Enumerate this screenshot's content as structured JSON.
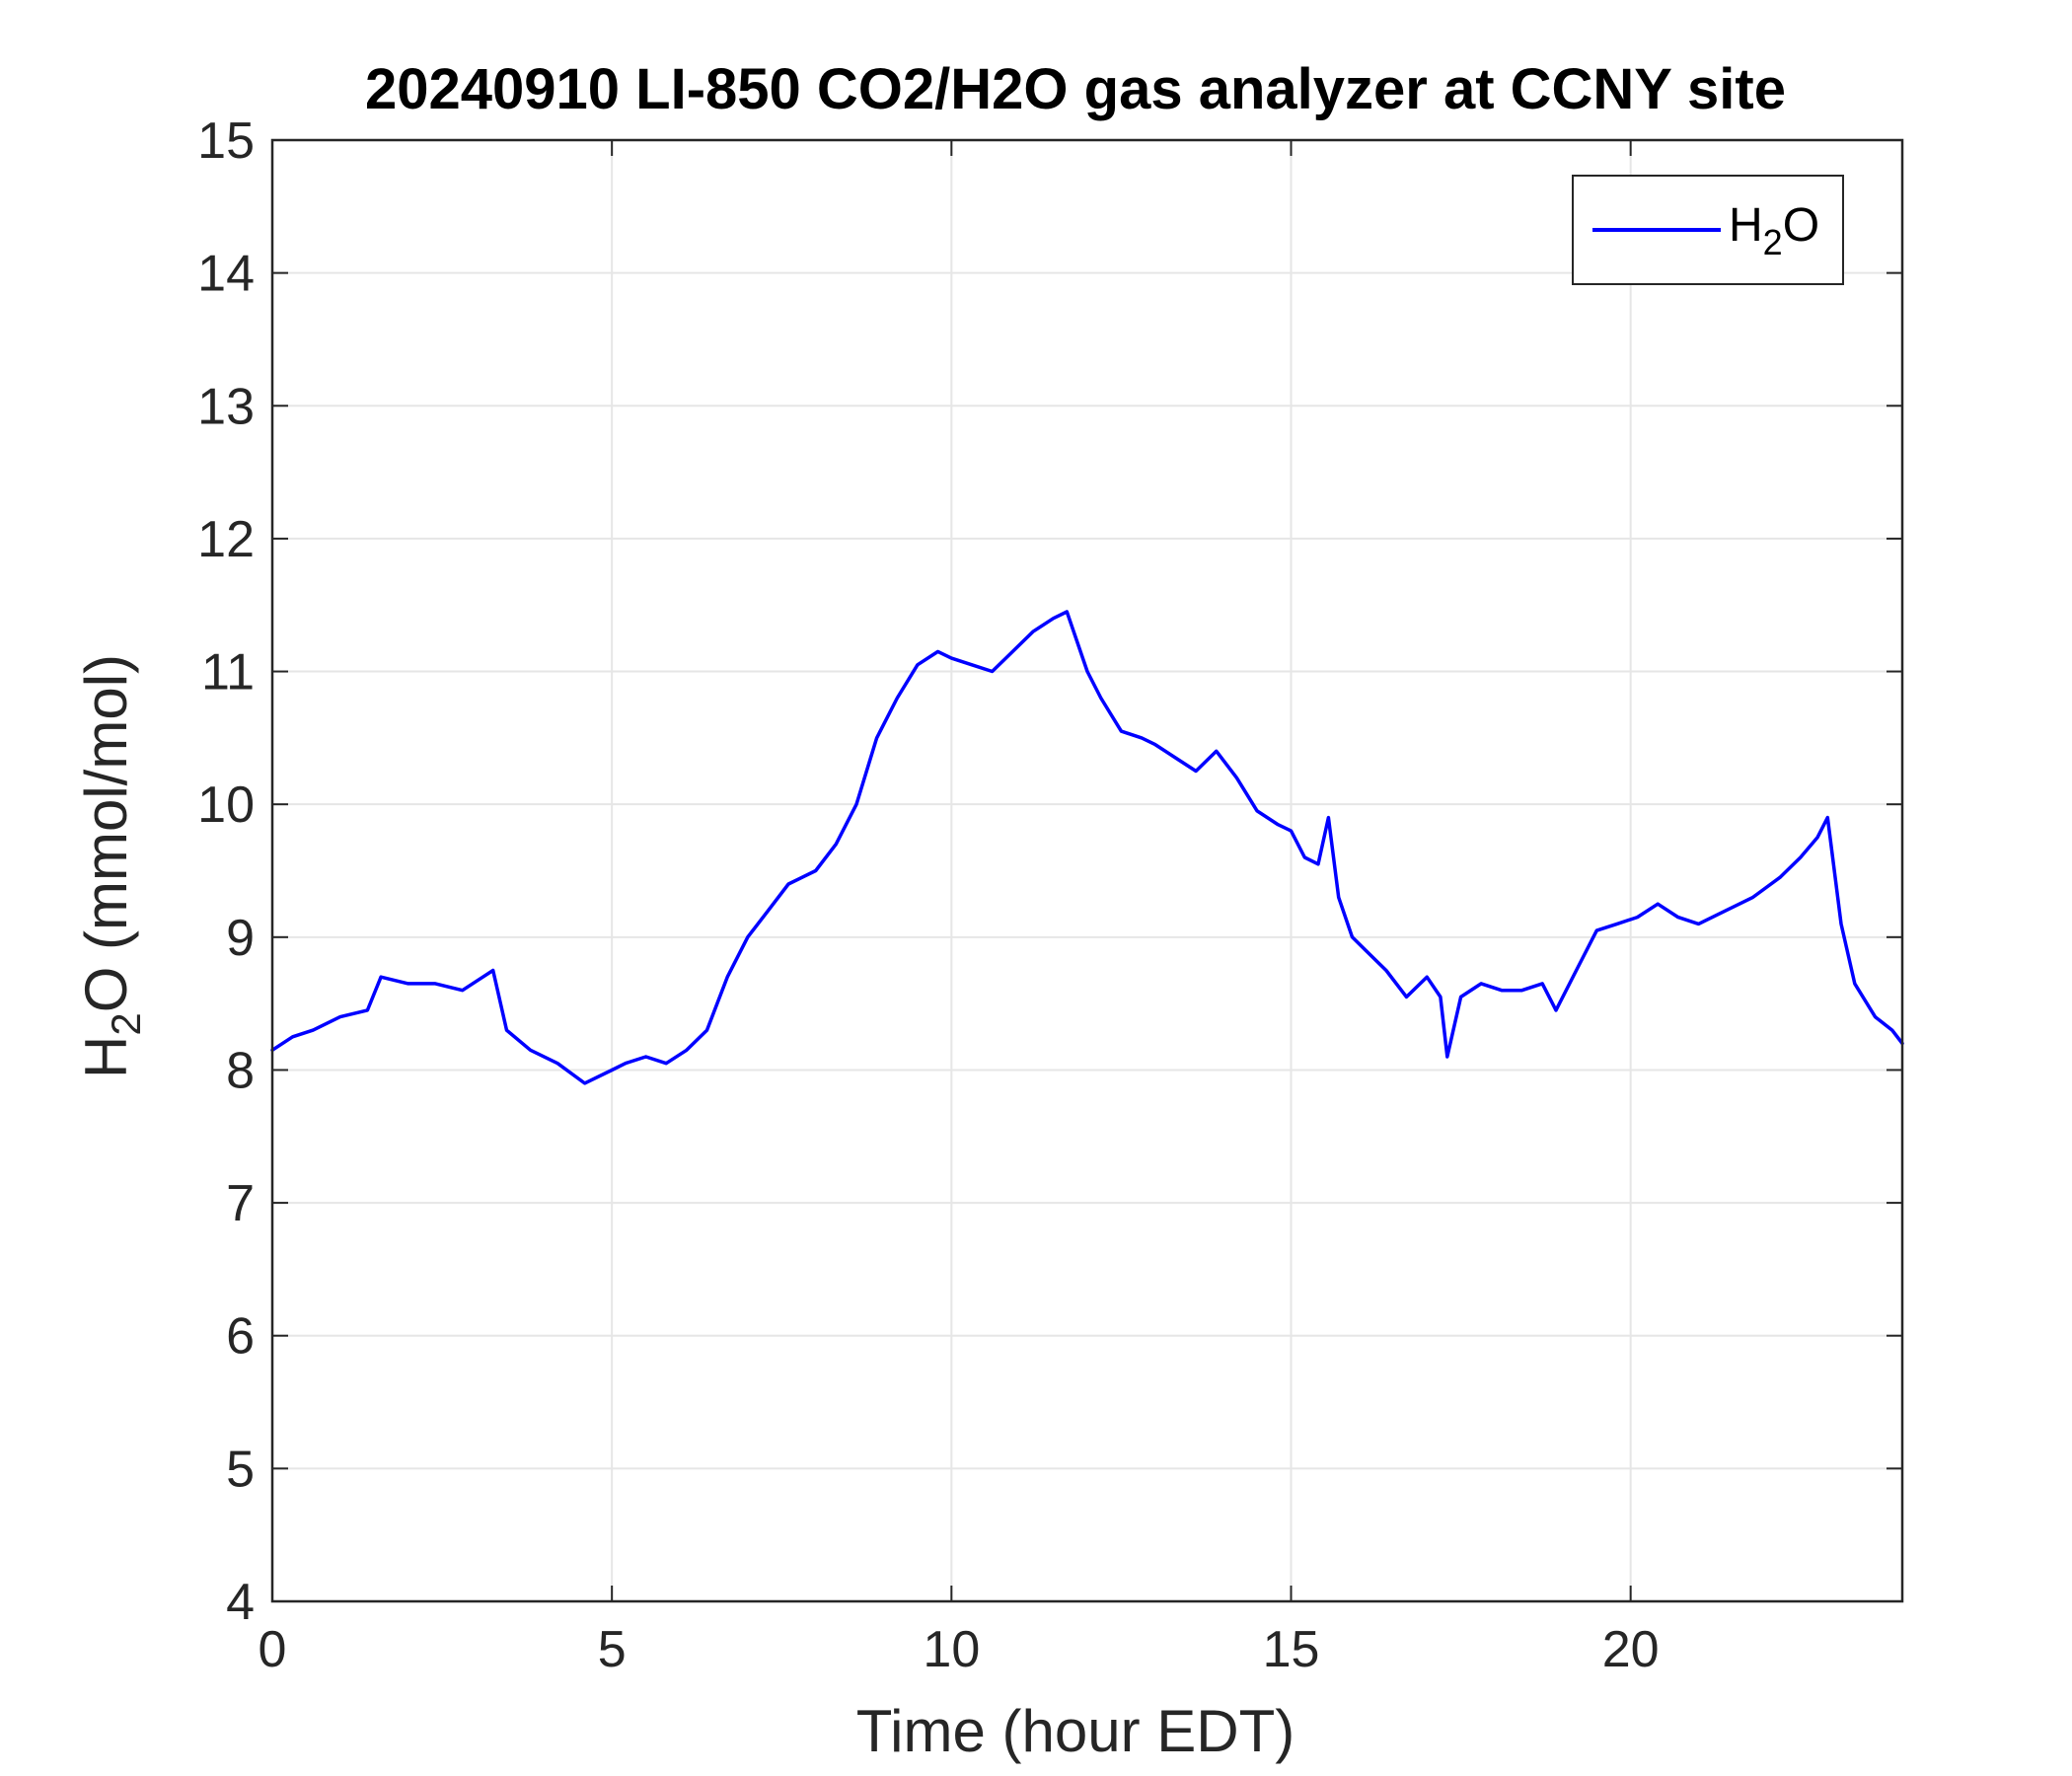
{
  "chart_data": {
    "type": "line",
    "title": "20240910 LI-850 CO2/H2O gas analyzer at CCNY site",
    "xlabel": "Time (hour EDT)",
    "ylabel": {
      "base": "H",
      "sub": "2",
      "rest": "O (mmol/mol)"
    },
    "xlim": [
      0,
      24
    ],
    "ylim": [
      4,
      15
    ],
    "xticks": [
      0,
      5,
      10,
      15,
      20
    ],
    "yticks": [
      4,
      5,
      6,
      7,
      8,
      9,
      10,
      11,
      12,
      13,
      14,
      15
    ],
    "grid": true,
    "legend_position": "top-right",
    "line_color": "#0000ff",
    "series": [
      {
        "name": {
          "base": "H",
          "sub": "2",
          "rest": "O"
        },
        "color": "#0000ff",
        "x": [
          0,
          0.3,
          0.6,
          1.0,
          1.4,
          1.6,
          2.0,
          2.4,
          2.8,
          3.1,
          3.25,
          3.45,
          3.8,
          4.2,
          4.6,
          5.0,
          5.2,
          5.5,
          5.8,
          6.1,
          6.4,
          6.7,
          7.0,
          7.3,
          7.6,
          8.0,
          8.3,
          8.6,
          8.9,
          9.2,
          9.5,
          9.8,
          10.0,
          10.3,
          10.6,
          10.9,
          11.2,
          11.5,
          11.7,
          12.0,
          12.2,
          12.5,
          12.8,
          13.0,
          13.3,
          13.6,
          13.9,
          14.2,
          14.5,
          14.8,
          15.0,
          15.2,
          15.4,
          15.55,
          15.7,
          15.9,
          16.1,
          16.4,
          16.7,
          17.0,
          17.2,
          17.3,
          17.5,
          17.8,
          18.1,
          18.4,
          18.7,
          18.9,
          19.2,
          19.5,
          19.8,
          20.1,
          20.4,
          20.7,
          21.0,
          21.4,
          21.8,
          22.2,
          22.5,
          22.75,
          22.9,
          23.1,
          23.3,
          23.6,
          23.85,
          24.0
        ],
        "y": [
          8.15,
          8.25,
          8.3,
          8.4,
          8.45,
          8.7,
          8.65,
          8.65,
          8.6,
          8.7,
          8.75,
          8.3,
          8.15,
          8.05,
          7.9,
          8.0,
          8.05,
          8.1,
          8.05,
          8.15,
          8.3,
          8.7,
          9.0,
          9.2,
          9.4,
          9.5,
          9.7,
          10.0,
          10.5,
          10.8,
          11.05,
          11.15,
          11.1,
          11.05,
          11.0,
          11.15,
          11.3,
          11.4,
          11.45,
          11.0,
          10.8,
          10.55,
          10.5,
          10.45,
          10.35,
          10.25,
          10.4,
          10.2,
          9.95,
          9.85,
          9.8,
          9.6,
          9.55,
          9.9,
          9.3,
          9.0,
          8.9,
          8.75,
          8.55,
          8.7,
          8.55,
          8.1,
          8.55,
          8.65,
          8.6,
          8.6,
          8.65,
          8.45,
          8.75,
          9.05,
          9.1,
          9.15,
          9.25,
          9.15,
          9.1,
          9.2,
          9.3,
          9.45,
          9.6,
          9.75,
          9.9,
          9.1,
          8.65,
          8.4,
          8.3,
          8.2
        ]
      }
    ]
  }
}
